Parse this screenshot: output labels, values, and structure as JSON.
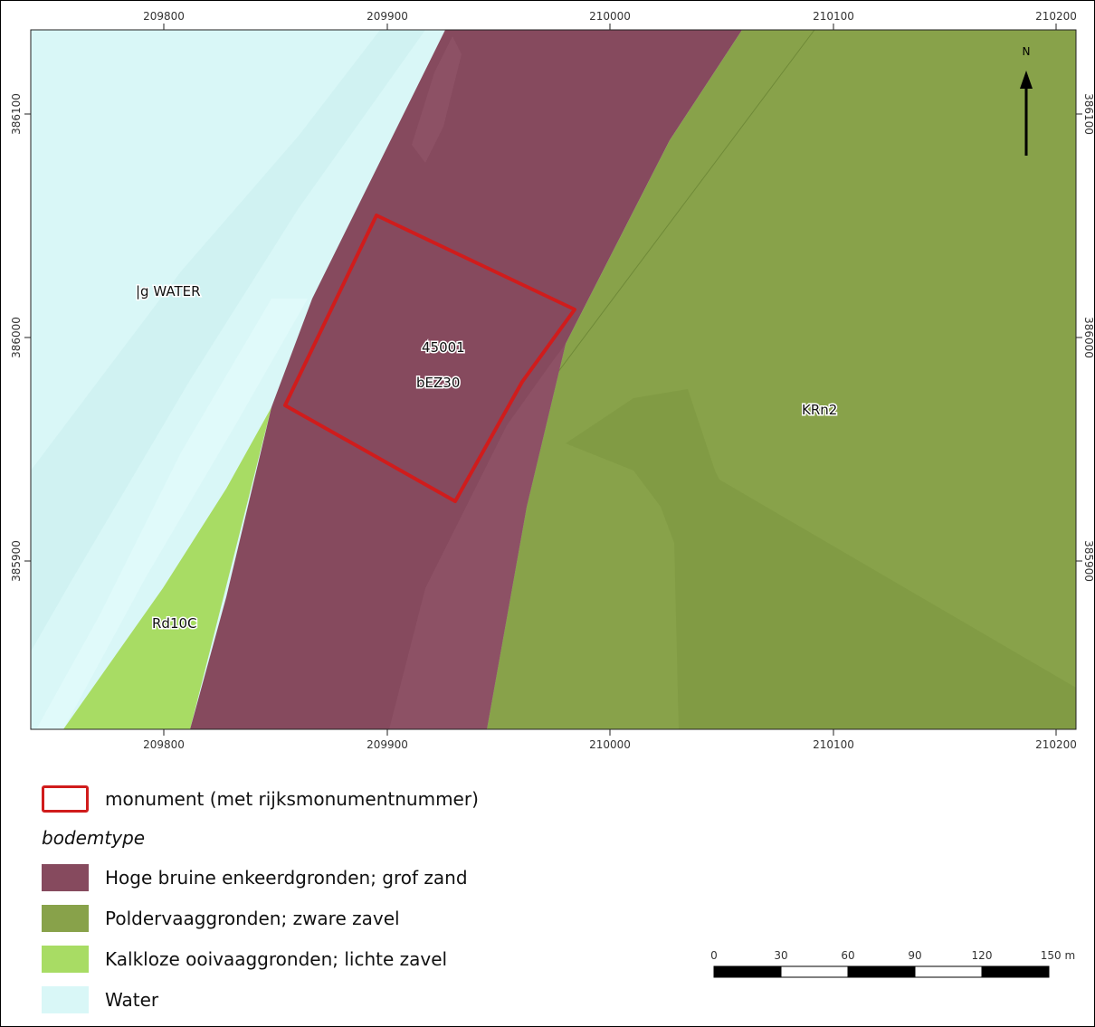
{
  "map": {
    "top_axis_labels": [
      "209800",
      "209900",
      "210000",
      "210100",
      "210200"
    ],
    "bottom_axis_labels": [
      "209800",
      "209900",
      "210000",
      "210100",
      "210200"
    ],
    "left_axis_labels": [
      "386100",
      "386000",
      "385900"
    ],
    "right_axis_labels": [
      "386100",
      "386000",
      "385900"
    ],
    "labels": {
      "water": "|g WATER",
      "monument_number": "45001",
      "soil_bez30": "bEZ30",
      "soil_krn2": "KRn2",
      "soil_rd10c": "Rd10C"
    },
    "north_arrow_label": "N",
    "colors": {
      "water": "#d9f7f7",
      "enkeerd": "#864a5e",
      "polder": "#88a24a",
      "ooivaag": "#a8dc64",
      "monument": "#d01c1c"
    }
  },
  "scale_bar": {
    "ticks": [
      "0",
      "30",
      "60",
      "90",
      "120",
      "150 m"
    ]
  },
  "legend": {
    "monument_label": "monument (met rijksmonumentnummer)",
    "soil_heading": "bodemtype",
    "items": [
      {
        "label": "Hoge bruine enkeerdgronden; grof zand",
        "color": "#864a5e"
      },
      {
        "label": "Poldervaaggronden; zware zavel",
        "color": "#88a24a"
      },
      {
        "label": "Kalkloze ooivaaggronden; lichte zavel",
        "color": "#a8dc64"
      },
      {
        "label": "Water",
        "color": "#d9f7f7"
      }
    ]
  }
}
